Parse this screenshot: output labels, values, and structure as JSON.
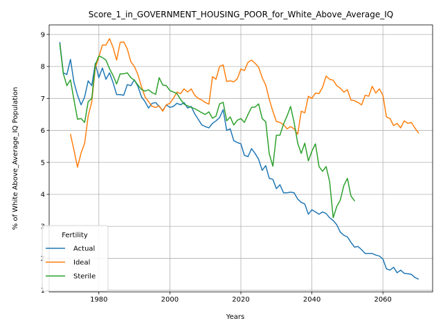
{
  "chart_data": {
    "type": "line",
    "title": "Score_1_in_GOVERNMENT_HOUSING_POOR_for_White_Above_Average_IQ",
    "xlabel": "Years",
    "ylabel": "% of White Above_Average_IQ Population",
    "xlim": [
      1966,
      2074
    ],
    "ylim": [
      0.95,
      9.3
    ],
    "xticks": [
      1980,
      2000,
      2020,
      2040,
      2060
    ],
    "yticks": [
      1,
      2,
      3,
      4,
      5,
      6,
      7,
      8,
      9
    ],
    "grid": true,
    "legend": {
      "title": "Fertility",
      "placement": "lower-left"
    },
    "series": [
      {
        "name": "Actual",
        "color": "#1f77b4",
        "x": [
          1969,
          1970,
          1971,
          1972,
          1973,
          1974,
          1975,
          1976,
          1977,
          1978,
          1979,
          1980,
          1981,
          1982,
          1983,
          1984,
          1985,
          1986,
          1987,
          1988,
          1989,
          1990,
          1991,
          1992,
          1993,
          1994,
          1995,
          1996,
          1997,
          1998,
          1999,
          2000,
          2001,
          2002,
          2003,
          2004,
          2005,
          2006,
          2007,
          2008,
          2009,
          2010,
          2011,
          2012,
          2013,
          2014,
          2015,
          2016,
          2017,
          2018,
          2019,
          2020,
          2021,
          2022,
          2023,
          2024,
          2025,
          2026,
          2027,
          2028,
          2029,
          2030,
          2031,
          2032,
          2033,
          2034,
          2035,
          2036,
          2037,
          2038,
          2039,
          2040,
          2041,
          2042,
          2043,
          2044,
          2045,
          2046,
          2047,
          2048,
          2049,
          2050,
          2051,
          2052,
          2053,
          2054,
          2055,
          2056,
          2057,
          2058,
          2059,
          2060,
          2061,
          2062,
          2063,
          2064,
          2065,
          2066,
          2067,
          2068,
          2069,
          2070
        ],
        "values": [
          8.75,
          7.8,
          7.75,
          8.22,
          7.5,
          7.1,
          6.8,
          7.05,
          7.55,
          7.4,
          8.1,
          7.65,
          7.95,
          7.6,
          7.8,
          7.5,
          7.12,
          7.12,
          7.1,
          7.43,
          7.4,
          7.58,
          7.38,
          7.05,
          6.9,
          6.7,
          6.85,
          6.87,
          6.75,
          6.62,
          6.8,
          6.72,
          6.75,
          6.85,
          6.8,
          6.87,
          6.7,
          6.75,
          6.52,
          6.35,
          6.17,
          6.12,
          6.08,
          6.22,
          6.3,
          6.4,
          6.65,
          6.0,
          6.05,
          5.68,
          5.62,
          5.58,
          5.22,
          5.18,
          5.43,
          5.28,
          5.1,
          4.75,
          4.9,
          4.5,
          4.47,
          4.18,
          4.3,
          4.05,
          4.05,
          4.07,
          4.05,
          3.85,
          3.75,
          3.7,
          3.38,
          3.52,
          3.45,
          3.38,
          3.45,
          3.4,
          3.27,
          3.18,
          3.05,
          2.82,
          2.72,
          2.67,
          2.5,
          2.35,
          2.37,
          2.27,
          2.15,
          2.15,
          2.15,
          2.1,
          2.07,
          1.98,
          1.67,
          1.63,
          1.72,
          1.55,
          1.63,
          1.53,
          1.52,
          1.5,
          1.4,
          1.35
        ]
      },
      {
        "name": "Ideal",
        "color": "#ff7f0e",
        "x": [
          1972,
          1973,
          1974,
          1975,
          1976,
          1977,
          1978,
          1979,
          1980,
          1981,
          1982,
          1983,
          1984,
          1985,
          1986,
          1987,
          1988,
          1989,
          1990,
          1991,
          1992,
          1993,
          1994,
          1995,
          1996,
          1997,
          1998,
          1999,
          2000,
          2001,
          2002,
          2003,
          2004,
          2005,
          2006,
          2007,
          2008,
          2009,
          2010,
          2011,
          2012,
          2013,
          2014,
          2015,
          2016,
          2017,
          2018,
          2019,
          2020,
          2021,
          2022,
          2023,
          2024,
          2025,
          2026,
          2027,
          2028,
          2029,
          2030,
          2031,
          2032,
          2033,
          2034,
          2035,
          2036,
          2037,
          2038,
          2039,
          2040,
          2041,
          2042,
          2043,
          2044,
          2045,
          2046,
          2047,
          2048,
          2049,
          2050,
          2051,
          2052,
          2053,
          2054,
          2055,
          2056,
          2057,
          2058,
          2059,
          2060,
          2061,
          2062,
          2063,
          2064,
          2065,
          2066,
          2067,
          2068,
          2069,
          2070
        ],
        "values": [
          5.88,
          5.38,
          4.85,
          5.3,
          5.6,
          6.45,
          6.9,
          7.95,
          8.3,
          8.67,
          8.67,
          8.87,
          8.6,
          8.2,
          8.75,
          8.77,
          8.55,
          8.15,
          8.0,
          7.75,
          7.37,
          7.05,
          6.9,
          6.75,
          6.72,
          6.77,
          6.6,
          6.8,
          6.85,
          7.0,
          7.2,
          7.15,
          7.3,
          7.2,
          7.3,
          7.1,
          7.0,
          6.95,
          6.87,
          6.82,
          7.68,
          7.6,
          8.0,
          8.05,
          7.53,
          7.55,
          7.52,
          7.62,
          7.92,
          7.87,
          8.13,
          8.2,
          8.1,
          7.98,
          7.65,
          7.42,
          6.97,
          6.6,
          6.28,
          6.25,
          6.18,
          6.05,
          6.12,
          6.05,
          5.88,
          6.6,
          6.55,
          7.07,
          7.0,
          7.17,
          7.15,
          7.35,
          7.7,
          7.6,
          7.57,
          7.4,
          7.32,
          7.2,
          7.27,
          6.95,
          6.93,
          6.87,
          6.8,
          7.1,
          7.07,
          7.38,
          7.17,
          7.3,
          7.1,
          6.42,
          6.37,
          6.15,
          6.22,
          6.08,
          6.3,
          6.22,
          6.25,
          6.08,
          5.92
        ]
      },
      {
        "name": "Sterile",
        "color": "#2ca02c",
        "x": [
          1969,
          1970,
          1971,
          1972,
          1973,
          1974,
          1975,
          1976,
          1977,
          1978,
          1979,
          1980,
          1981,
          1982,
          1983,
          1984,
          1985,
          1986,
          1987,
          1988,
          1989,
          1990,
          1991,
          1992,
          1993,
          1994,
          1995,
          1996,
          1997,
          1998,
          1999,
          2000,
          2001,
          2002,
          2003,
          2004,
          2005,
          2006,
          2007,
          2008,
          2009,
          2010,
          2011,
          2012,
          2013,
          2014,
          2015,
          2016,
          2017,
          2018,
          2019,
          2020,
          2021,
          2022,
          2023,
          2024,
          2025,
          2026,
          2027,
          2028,
          2029,
          2030,
          2031,
          2032,
          2033,
          2034,
          2035,
          2036,
          2037,
          2038,
          2039,
          2040,
          2041,
          2042,
          2043,
          2044,
          2045,
          2046,
          2047,
          2048,
          2049,
          2050,
          2051,
          2052
        ],
        "values": [
          8.7,
          7.77,
          7.4,
          7.58,
          6.95,
          6.35,
          6.37,
          6.25,
          6.9,
          7.0,
          8.05,
          8.33,
          8.28,
          8.2,
          7.93,
          7.72,
          7.45,
          7.77,
          7.77,
          7.8,
          7.65,
          7.57,
          7.42,
          7.28,
          7.23,
          7.27,
          7.18,
          7.13,
          7.65,
          7.42,
          7.4,
          7.25,
          7.2,
          7.15,
          6.97,
          6.82,
          6.77,
          6.72,
          6.68,
          6.62,
          6.55,
          6.5,
          6.58,
          6.38,
          6.45,
          6.83,
          6.88,
          6.3,
          6.42,
          6.17,
          6.32,
          6.37,
          6.25,
          6.5,
          6.72,
          6.73,
          6.83,
          6.37,
          6.27,
          5.27,
          4.88,
          5.85,
          5.85,
          6.2,
          6.45,
          6.75,
          6.25,
          5.6,
          5.28,
          5.6,
          5.05,
          5.35,
          5.58,
          4.87,
          4.72,
          4.87,
          4.4,
          3.27,
          3.62,
          3.82,
          4.28,
          4.5,
          3.95,
          3.8
        ]
      }
    ]
  }
}
